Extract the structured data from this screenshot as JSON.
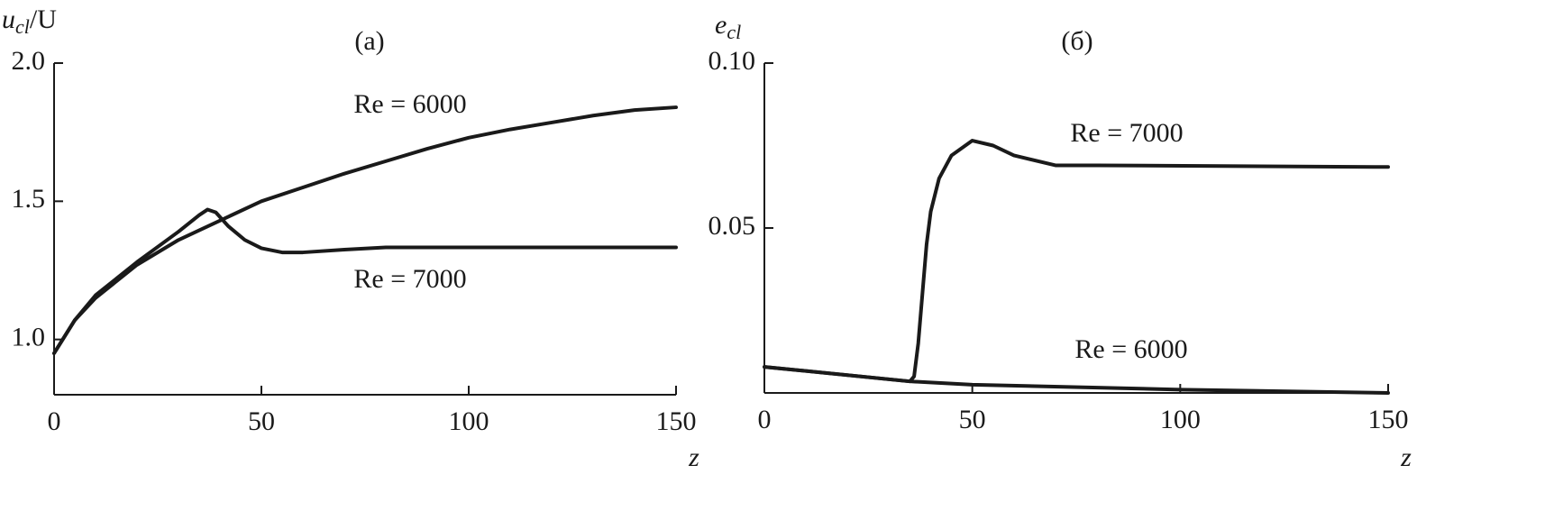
{
  "chart_data": [
    {
      "type": "line",
      "title": "(a)",
      "ylabel": [
        "u",
        "cl",
        "/U"
      ],
      "xlabel": "z",
      "xlim": [
        0,
        150
      ],
      "xticks": [
        0,
        50,
        100,
        150
      ],
      "ylim": [
        0.8,
        2.0
      ],
      "yticks": [
        {
          "value": 1.0,
          "label": "1.0"
        },
        {
          "value": 1.5,
          "label": "1.5"
        },
        {
          "value": 2.0,
          "label": "2.0"
        }
      ],
      "series": [
        {
          "name": "Re = 6000",
          "color": "#1a1a1a",
          "x": [
            0,
            5,
            10,
            20,
            30,
            40,
            50,
            60,
            70,
            80,
            90,
            100,
            110,
            120,
            130,
            140,
            150
          ],
          "values": [
            0.95,
            1.07,
            1.15,
            1.27,
            1.36,
            1.43,
            1.5,
            1.55,
            1.6,
            1.645,
            1.69,
            1.73,
            1.76,
            1.785,
            1.81,
            1.83,
            1.84
          ]
        },
        {
          "name": "Re = 7000",
          "color": "#1a1a1a",
          "x": [
            0,
            5,
            10,
            20,
            30,
            35,
            37,
            39,
            42,
            46,
            50,
            55,
            60,
            70,
            80,
            100,
            150
          ],
          "values": [
            0.95,
            1.07,
            1.16,
            1.28,
            1.39,
            1.45,
            1.47,
            1.46,
            1.41,
            1.36,
            1.33,
            1.315,
            1.315,
            1.325,
            1.333,
            1.333,
            1.333
          ]
        }
      ]
    },
    {
      "type": "line",
      "title": "(б)",
      "ylabel": [
        "e",
        "cl",
        ""
      ],
      "xlabel": "z",
      "xlim": [
        0,
        150
      ],
      "xticks": [
        0,
        50,
        100,
        150
      ],
      "ylim": [
        0,
        0.1
      ],
      "yticks": [
        0.05,
        {
          "value": 0.1,
          "label": "0.10"
        }
      ],
      "series": [
        {
          "name": "Re = 7000",
          "color": "#1a1a1a",
          "x": [
            0,
            35,
            36,
            37,
            38,
            39,
            40,
            42,
            45,
            50,
            55,
            60,
            70,
            80,
            150
          ],
          "values": [
            0.0079,
            0.0035,
            0.005,
            0.015,
            0.03,
            0.045,
            0.055,
            0.065,
            0.072,
            0.0765,
            0.075,
            0.072,
            0.069,
            0.069,
            0.0685
          ]
        },
        {
          "name": "Re = 6000",
          "color": "#1a1a1a",
          "x": [
            0,
            35,
            50,
            100,
            150
          ],
          "values": [
            0.0079,
            0.0035,
            0.0025,
            0.001,
            0.0
          ]
        }
      ]
    }
  ]
}
